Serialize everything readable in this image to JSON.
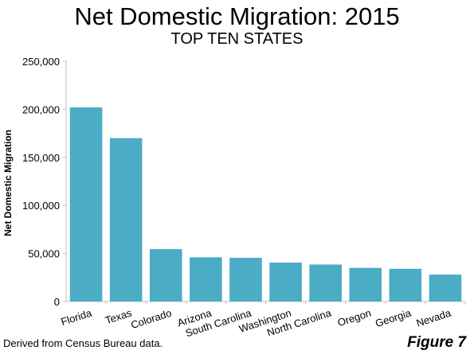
{
  "title": "Net Domestic Migration: 2015",
  "subtitle": "TOP TEN STATES",
  "source_note": "Derived from Census Bureau data.",
  "figure_label": "Figure 7",
  "colors": {
    "bar": "#4BACC6",
    "axis": "#c0c0c0",
    "text": "#000000"
  },
  "chart_data": {
    "type": "bar",
    "title": "Net Domestic Migration: 2015",
    "subtitle": "TOP TEN STATES",
    "xlabel": "",
    "ylabel": "Net Domestic Migration",
    "categories": [
      "Florida",
      "Texas",
      "Colorado",
      "Arizona",
      "South Carolina",
      "Washington",
      "North Carolina",
      "Oregon",
      "Georgia",
      "Nevada"
    ],
    "values": [
      202000,
      170000,
      54500,
      46000,
      45500,
      40500,
      38500,
      35000,
      34000,
      28000
    ],
    "ylim": [
      0,
      250000
    ],
    "yticks": [
      0,
      50000,
      100000,
      150000,
      200000,
      250000
    ],
    "ytick_labels": [
      "0",
      "50,000",
      "100,000",
      "150,000",
      "200,000",
      "250,000"
    ],
    "grid": false,
    "legend": "none"
  }
}
